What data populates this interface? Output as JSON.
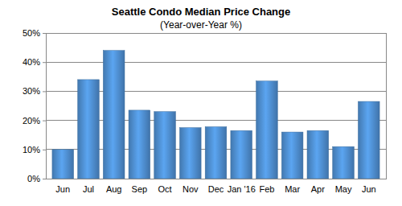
{
  "chart_data": {
    "type": "bar",
    "title": "Seattle Condo Median Price Change",
    "subtitle": "(Year-over-Year %)",
    "categories": [
      "Jun",
      "Jul",
      "Aug",
      "Sep",
      "Oct",
      "Nov",
      "Dec",
      "Jan '16",
      "Feb",
      "Mar",
      "Apr",
      "May",
      "Jun"
    ],
    "values": [
      10,
      34,
      44,
      23.5,
      23,
      17.5,
      17.8,
      16.5,
      33.5,
      16,
      16.5,
      11,
      26.5
    ],
    "color": "#4f8fd1",
    "ylim": [
      0,
      50
    ],
    "yticks": [
      {
        "value": 0,
        "label": "0%"
      },
      {
        "value": 10,
        "label": "10%"
      },
      {
        "value": 20,
        "label": "20%"
      },
      {
        "value": 30,
        "label": "30%"
      },
      {
        "value": 40,
        "label": "40%"
      },
      {
        "value": 50,
        "label": "50%"
      }
    ],
    "grid": true
  }
}
